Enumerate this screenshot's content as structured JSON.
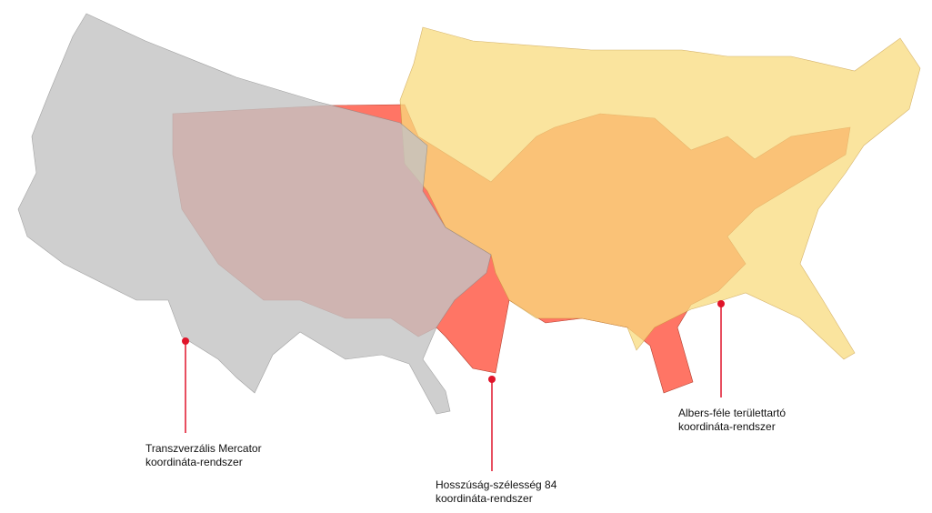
{
  "colors": {
    "transverse_mercator": "#c4c4c4",
    "wgs84": "#ff7565",
    "albers": "#f9dc7e",
    "marker": "#e0142a"
  },
  "labels": {
    "transverse_mercator": {
      "line1": "Transzverzális Mercator",
      "line2": "koordináta-rendszer"
    },
    "wgs84": {
      "line1": "Hosszúság-szélesség 84",
      "line2": "koordináta-rendszer"
    },
    "albers": {
      "line1": "Albers-féle területtartó",
      "line2": "koordináta-rendszer"
    }
  }
}
